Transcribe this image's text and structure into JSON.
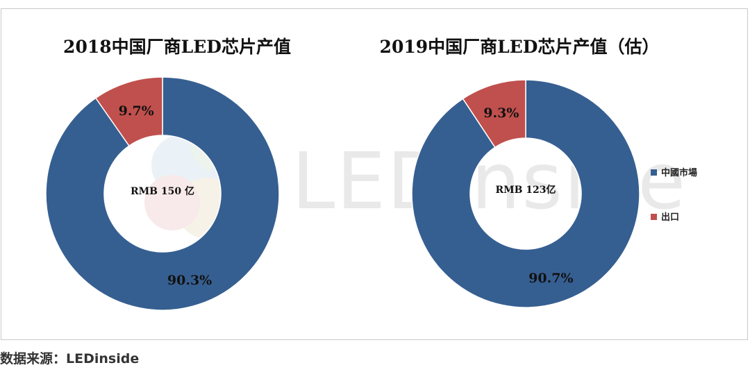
{
  "colors": {
    "china_market": "#365F91",
    "export": "#C0504D",
    "frame": "#c9c9c9"
  },
  "watermark": {
    "text": "LEDinside"
  },
  "legend": {
    "items": [
      {
        "label": "中國市場",
        "color": "#365F91"
      },
      {
        "label": "出口",
        "color": "#C0504D"
      }
    ]
  },
  "source": {
    "text": "数据来源：LEDinside"
  },
  "chart_data": [
    {
      "type": "pie",
      "title": "2018中国厂商LED芯片产值",
      "center_label": "RMB 150 亿",
      "categories": [
        "中國市場",
        "出口"
      ],
      "values": [
        90.3,
        9.7
      ],
      "value_labels": [
        "90.3%",
        "9.7%"
      ],
      "legend": "none"
    },
    {
      "type": "pie",
      "title": "2019中国厂商LED芯片产值（估）",
      "center_label": "RMB 123亿",
      "categories": [
        "中國市場",
        "出口"
      ],
      "values": [
        90.7,
        9.3
      ],
      "value_labels": [
        "90.7%",
        "9.3%"
      ],
      "legend": "right"
    }
  ]
}
